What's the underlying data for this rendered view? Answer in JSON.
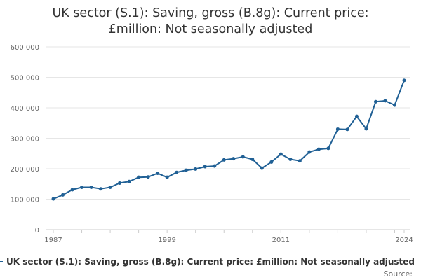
{
  "chart_data": {
    "type": "line",
    "title_lines": [
      "UK sector (S.1): Saving, gross (B.8g): Current price:",
      "£million: Not seasonally adjusted"
    ],
    "xlabel": "",
    "ylabel": "",
    "x": [
      1987,
      1988,
      1989,
      1990,
      1991,
      1992,
      1993,
      1994,
      1995,
      1996,
      1997,
      1998,
      1999,
      2000,
      2001,
      2002,
      2003,
      2004,
      2005,
      2006,
      2007,
      2008,
      2009,
      2010,
      2011,
      2012,
      2013,
      2014,
      2015,
      2016,
      2017,
      2018,
      2019,
      2020,
      2021,
      2022,
      2023,
      2024
    ],
    "series": [
      {
        "name": "UK sector (S.1): Saving, gross (B.8g): Current price: £million: Not seasonally adjusted",
        "color": "#206095",
        "values": [
          101000,
          114000,
          131000,
          139000,
          139000,
          134000,
          139000,
          153000,
          158000,
          172000,
          173000,
          185000,
          172000,
          188000,
          195000,
          199000,
          207000,
          209000,
          229000,
          233000,
          239000,
          231000,
          202000,
          222000,
          248000,
          231000,
          226000,
          255000,
          264000,
          267000,
          330000,
          329000,
          372000,
          331000,
          420000,
          423000,
          409000,
          490000
        ]
      }
    ],
    "xlim": [
      1987,
      2024
    ],
    "ylim": [
      0,
      600000
    ],
    "y_ticks": [
      0,
      100000,
      200000,
      300000,
      400000,
      500000,
      600000
    ],
    "y_tick_labels": [
      "0",
      "100 000",
      "200 000",
      "300 000",
      "400 000",
      "500 000",
      "600 000"
    ],
    "x_tick_labels": [
      "1987",
      "1999",
      "2011",
      "2024"
    ],
    "x_tick_values": [
      1987,
      1999,
      2011,
      2024
    ],
    "grid": true,
    "legend_position": "bottom",
    "legend_label": "UK sector (S.1): Saving, gross (B.8g): Current price: £million: Not seasonally adjusted",
    "source_label": "Source:"
  }
}
